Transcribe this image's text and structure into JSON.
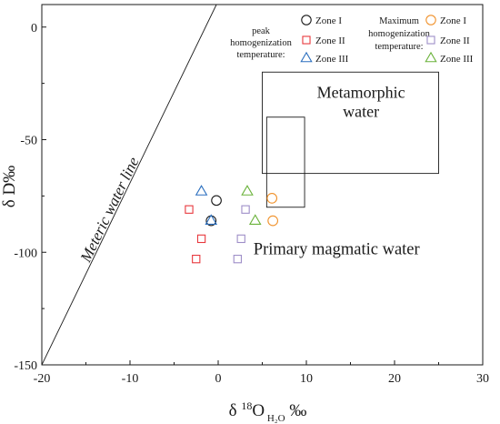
{
  "chart_data": {
    "type": "scatter",
    "xlabel": "δ ¹⁸O H₂O ‰",
    "ylabel": "δ D‰",
    "xlim": [
      -20,
      30
    ],
    "ylim": [
      -150,
      10
    ],
    "x_ticks": [
      -20,
      -10,
      0,
      10,
      20,
      30
    ],
    "y_ticks": [
      0,
      -50,
      -100,
      -150
    ],
    "legend_groups": [
      {
        "title": "peak homogenization temperature:",
        "title_lines": [
          "peak",
          "homogenization",
          "temperature:"
        ]
      },
      {
        "title": "Maximum homogenization temperature:",
        "title_lines": [
          "Maximum",
          "homogenization",
          "temperature:"
        ]
      }
    ],
    "series": [
      {
        "name": "Zone I",
        "group": 0,
        "marker": "circle",
        "color": "#1a1a1a",
        "points": [
          [
            -0.2,
            -77
          ],
          [
            -0.8,
            -86
          ]
        ]
      },
      {
        "name": "Zone II",
        "group": 0,
        "marker": "square",
        "color": "#e8383d",
        "points": [
          [
            -3.3,
            -81
          ],
          [
            -1.9,
            -94
          ],
          [
            -2.5,
            -103
          ]
        ]
      },
      {
        "name": "Zone III",
        "group": 0,
        "marker": "triangle",
        "color": "#2b6fbf",
        "points": [
          [
            -1.9,
            -73
          ],
          [
            -0.8,
            -86
          ]
        ]
      },
      {
        "name": "Zone I",
        "group": 1,
        "marker": "circle",
        "color": "#f0912a",
        "points": [
          [
            6.1,
            -76
          ],
          [
            6.2,
            -86
          ]
        ]
      },
      {
        "name": "Zone II",
        "group": 1,
        "marker": "square",
        "color": "#9e8ec8",
        "points": [
          [
            3.1,
            -81
          ],
          [
            2.6,
            -94
          ],
          [
            2.2,
            -103
          ]
        ]
      },
      {
        "name": "Zone III",
        "group": 1,
        "marker": "triangle",
        "color": "#6ab23a",
        "points": [
          [
            3.3,
            -73
          ],
          [
            4.2,
            -86
          ]
        ]
      }
    ],
    "regions": [
      {
        "name": "Metamorphic water",
        "label_lines": [
          "Metamorphic",
          "water"
        ],
        "x": [
          5,
          25
        ],
        "y": [
          -65,
          -20
        ]
      },
      {
        "name": "Primary magmatic water",
        "x": [
          5.5,
          9.8
        ],
        "y": [
          -80,
          -40
        ]
      }
    ],
    "reference_line": {
      "name": "Meteric water line",
      "points": [
        [
          -20,
          -150
        ],
        [
          -0.2,
          10
        ]
      ]
    }
  }
}
